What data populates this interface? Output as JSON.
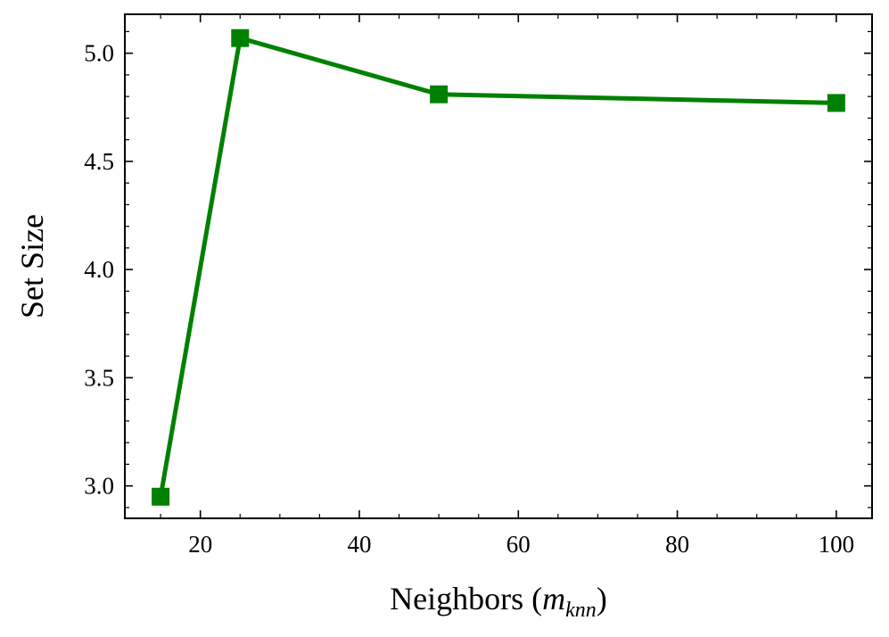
{
  "chart_data": {
    "type": "line",
    "title": "",
    "xlabel": "Neighbors (",
    "xlabel_var": "m",
    "xlabel_sub": "knn",
    "xlabel_close": ")",
    "ylabel": "Set Size",
    "xlim": [
      10.5,
      104.5
    ],
    "ylim": [
      2.85,
      5.18
    ],
    "xticks": [
      20,
      40,
      60,
      80,
      100
    ],
    "xtick_labels": [
      "20",
      "40",
      "60",
      "80",
      "100"
    ],
    "yticks": [
      3.0,
      3.5,
      4.0,
      4.5,
      5.0
    ],
    "ytick_labels": [
      "3.0",
      "3.5",
      "4.0",
      "4.5",
      "5.0"
    ],
    "grid": false,
    "series": [
      {
        "x": [
          15,
          25,
          50,
          100
        ],
        "y": [
          2.95,
          5.07,
          4.81,
          4.77
        ],
        "color": "#008000",
        "marker": "square"
      }
    ]
  }
}
